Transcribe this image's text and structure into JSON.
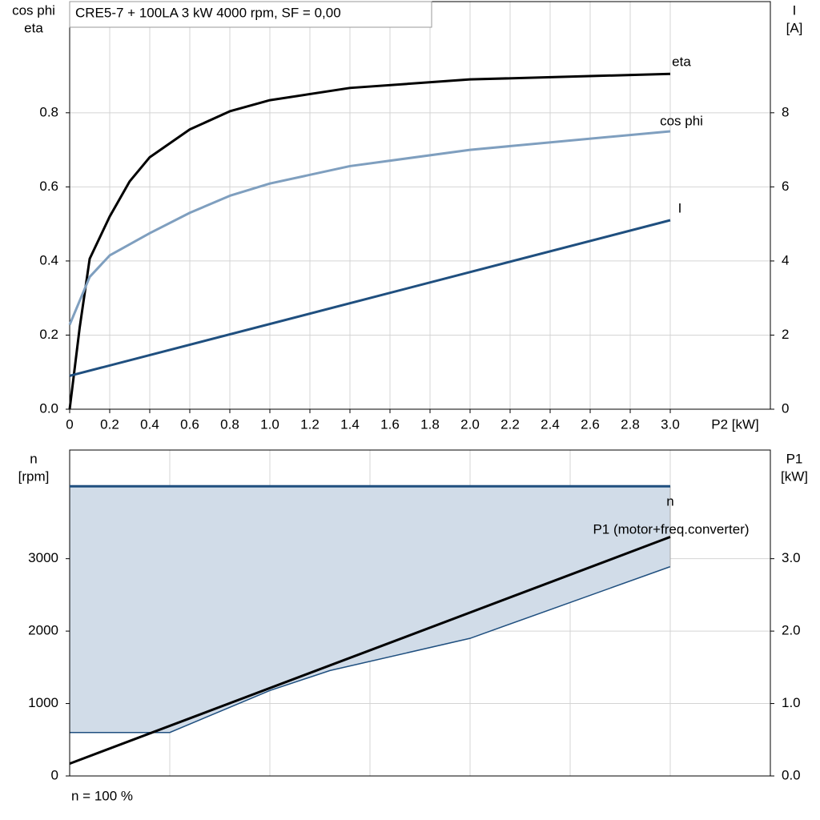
{
  "chart_data": [
    {
      "type": "line",
      "title": "CRE5-7 + 100LA   3 kW   4000 rpm, SF = 0,00",
      "ylabel": [
        "cos phi",
        "eta"
      ],
      "y2label": [
        "I",
        "[A]"
      ],
      "xlabel": "P2 [kW]",
      "xlim": [
        0,
        3.5
      ],
      "xticks": [
        0,
        0.2,
        0.4,
        0.6,
        0.8,
        {
          "value": 1,
          "label": "1.0"
        },
        1.2,
        1.4,
        1.6,
        1.8,
        {
          "value": 2,
          "label": "2.0"
        },
        2.2,
        2.4,
        2.6,
        2.8,
        {
          "value": 3,
          "label": "3.0"
        }
      ],
      "ylim": [
        0,
        1.1
      ],
      "yticks": [
        {
          "value": 0,
          "label": "0.0"
        },
        0.2,
        0.4,
        0.6,
        0.8
      ],
      "y2lim": [
        0,
        11
      ],
      "y2ticks": [
        0,
        2,
        4,
        6,
        8
      ],
      "grid": true,
      "series": [
        {
          "name": "eta",
          "color": "#000000",
          "x": [
            0,
            0.05,
            0.1,
            0.2,
            0.3,
            0.4,
            0.6,
            0.8,
            1.0,
            1.4,
            2.0,
            3.0
          ],
          "values": [
            0,
            0.22,
            0.406,
            0.52,
            0.615,
            0.68,
            0.755,
            0.804,
            0.834,
            0.867,
            0.89,
            0.905
          ]
        },
        {
          "name": "cos phi",
          "color": "#7f9fbf",
          "x": [
            0,
            0.1,
            0.2,
            0.4,
            0.6,
            0.8,
            1.0,
            1.4,
            2.0,
            3.0
          ],
          "values": [
            0.228,
            0.357,
            0.415,
            0.475,
            0.53,
            0.576,
            0.609,
            0.656,
            0.7,
            0.75
          ]
        },
        {
          "name": "I",
          "color": "#1f4f7f",
          "axis": "y2",
          "x": [
            0,
            1.5,
            3.0
          ],
          "values": [
            0.9,
            3.0,
            5.1
          ]
        }
      ]
    },
    {
      "type": "line",
      "ylabel": [
        "n",
        "[rpm]"
      ],
      "y2label": [
        "P1",
        "[kW]"
      ],
      "footer": "n = 100 %",
      "xlim": [
        0,
        3.5
      ],
      "xgrid": [
        0,
        0.5,
        1.0,
        1.5,
        2.0,
        2.5,
        3.0,
        3.5
      ],
      "ylim": [
        0,
        4500
      ],
      "yticks": [
        0,
        1000,
        2000,
        3000
      ],
      "y2lim": [
        0,
        4.5
      ],
      "y2ticks": [
        {
          "value": 0,
          "label": "0.0"
        },
        {
          "value": 1,
          "label": "1.0"
        },
        {
          "value": 2,
          "label": "2.0"
        },
        {
          "value": 3,
          "label": "3.0"
        }
      ],
      "grid": true,
      "area": {
        "color": "#d1dce8",
        "edge": "#1f4f7f",
        "x": [
          0,
          0.5,
          1.0,
          1.3,
          2.0,
          3.0
        ],
        "values": [
          600,
          600,
          1180,
          1455,
          1900,
          2890
        ]
      },
      "series": [
        {
          "name": "n",
          "color": "#1f4f7f",
          "x": [
            0,
            3.0
          ],
          "values": [
            4000,
            4000
          ]
        },
        {
          "name": "P1 (motor+freq.converter)",
          "color": "#000000",
          "axis": "y2",
          "x": [
            0,
            3.0
          ],
          "values": [
            0.17,
            3.3
          ]
        }
      ]
    }
  ]
}
